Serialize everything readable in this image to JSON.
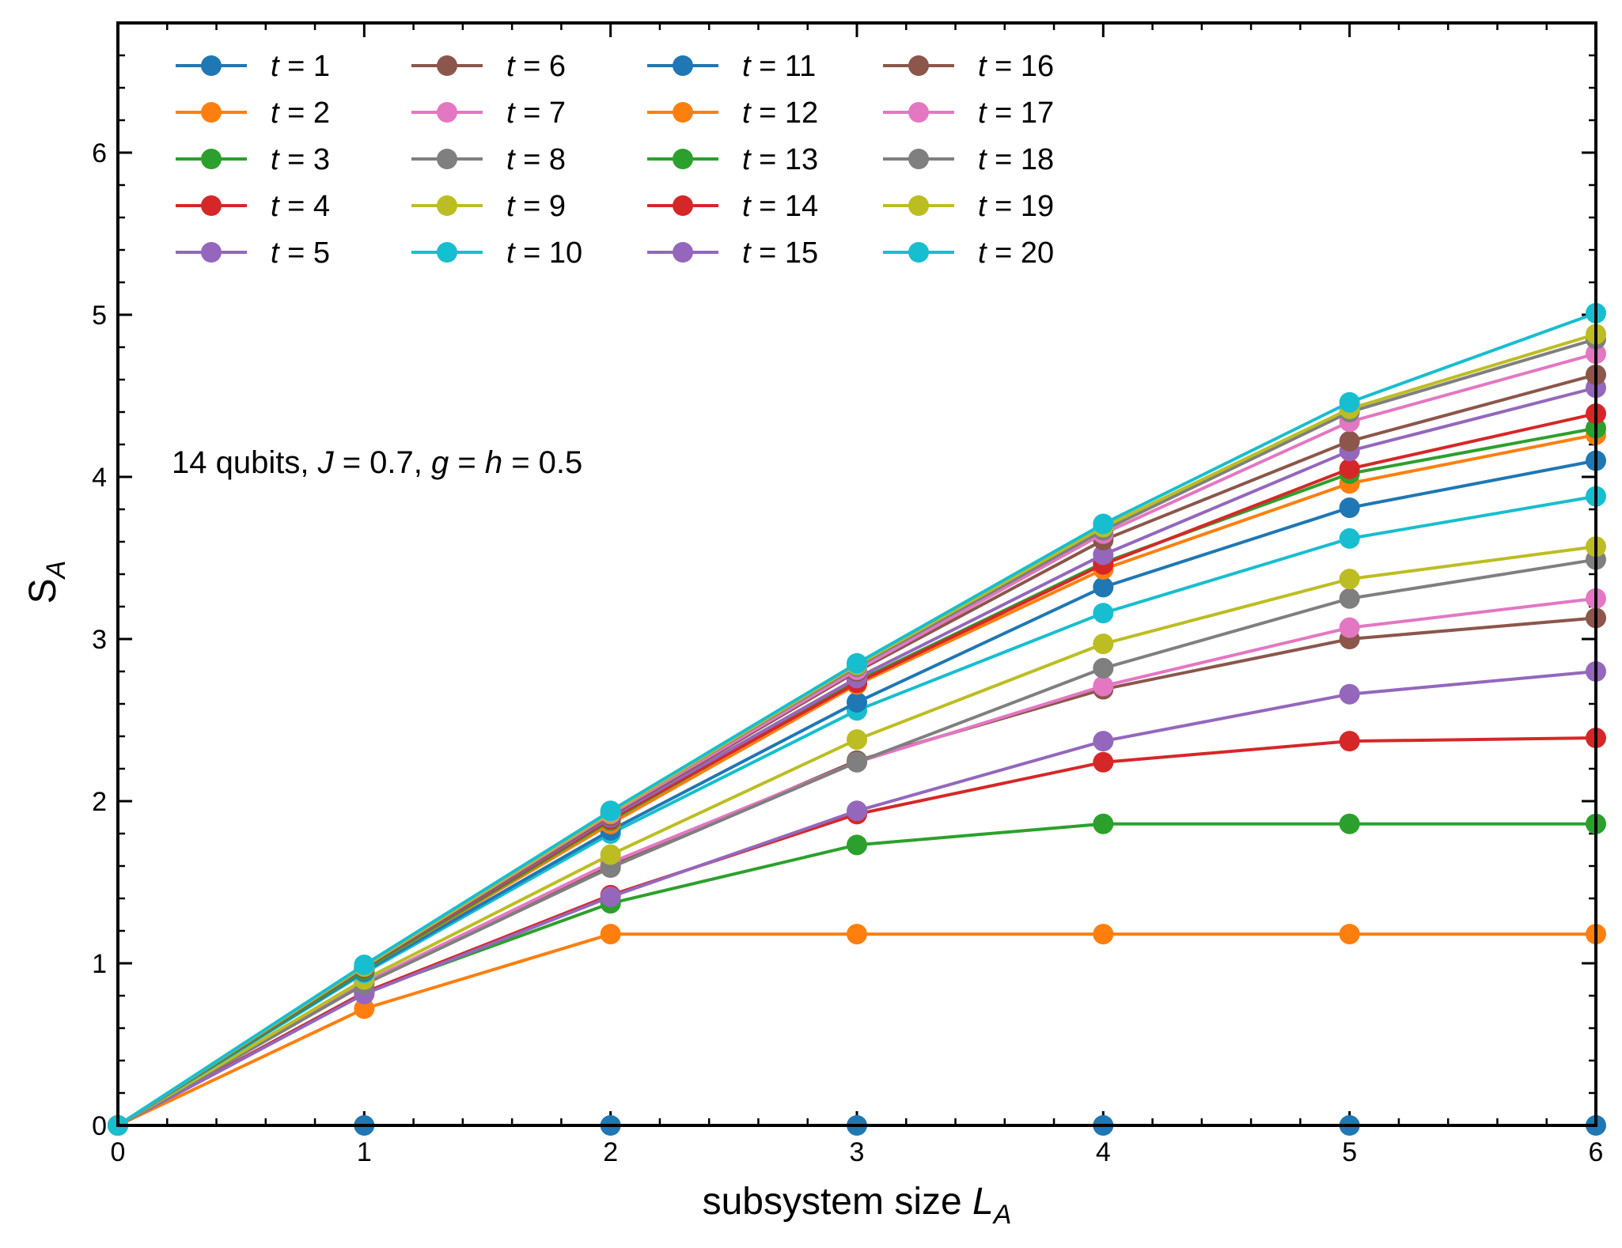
{
  "chart_data": {
    "type": "line",
    "xlabel": "subsystem size",
    "xlabel_symbol": "L",
    "xlabel_subscript": "A",
    "ylabel": "S",
    "ylabel_subscript": "A",
    "xlim": [
      0,
      6
    ],
    "ylim": [
      0,
      6.8
    ],
    "xticks": [
      "0",
      "1",
      "2",
      "3",
      "4",
      "5",
      "6"
    ],
    "yticks": [
      "0",
      "1",
      "2",
      "3",
      "4",
      "5",
      "6"
    ],
    "grid": false,
    "legend_position": "top-left",
    "legend_columns": 4,
    "annotation": {
      "prefix": "14 qubits, ",
      "j_symbol": "J",
      "j_value": " = 0.7, ",
      "g_symbol": "g",
      "eq1": " = ",
      "h_symbol": "h",
      "eq2": " = 0.5"
    },
    "x": [
      0,
      1,
      2,
      3,
      4,
      5,
      6
    ],
    "series": [
      {
        "name": "t = 1",
        "color": "#1f77b4",
        "values": [
          0,
          0,
          0,
          0,
          0,
          0,
          0
        ]
      },
      {
        "name": "t = 2",
        "color": "#ff7f0e",
        "values": [
          0,
          0.72,
          1.18,
          1.18,
          1.18,
          1.18,
          1.18
        ]
      },
      {
        "name": "t = 3",
        "color": "#2ca02c",
        "values": [
          0,
          0.82,
          1.37,
          1.73,
          1.86,
          1.86,
          1.86
        ]
      },
      {
        "name": "t = 4",
        "color": "#d62728",
        "values": [
          0,
          0.82,
          1.42,
          1.92,
          2.24,
          2.37,
          2.39
        ]
      },
      {
        "name": "t = 5",
        "color": "#9467bd",
        "values": [
          0,
          0.81,
          1.41,
          1.94,
          2.37,
          2.66,
          2.8
        ]
      },
      {
        "name": "t = 6",
        "color": "#8c564b",
        "values": [
          0,
          0.88,
          1.6,
          2.25,
          2.69,
          3.0,
          3.13
        ]
      },
      {
        "name": "t = 7",
        "color": "#e377c2",
        "values": [
          0,
          0.88,
          1.62,
          2.24,
          2.71,
          3.07,
          3.25
        ]
      },
      {
        "name": "t = 8",
        "color": "#7f7f7f",
        "values": [
          0,
          0.87,
          1.59,
          2.24,
          2.82,
          3.25,
          3.49
        ]
      },
      {
        "name": "t = 9",
        "color": "#bcbd22",
        "values": [
          0,
          0.9,
          1.67,
          2.38,
          2.97,
          3.37,
          3.57
        ]
      },
      {
        "name": "t = 10",
        "color": "#17becf",
        "values": [
          0,
          0.94,
          1.8,
          2.56,
          3.16,
          3.62,
          3.88
        ]
      },
      {
        "name": "t = 11",
        "color": "#1f77b4",
        "values": [
          0,
          0.95,
          1.82,
          2.61,
          3.32,
          3.81,
          4.1
        ]
      },
      {
        "name": "t = 12",
        "color": "#ff7f0e",
        "values": [
          0,
          0.96,
          1.86,
          2.72,
          3.43,
          3.96,
          4.26
        ]
      },
      {
        "name": "t = 13",
        "color": "#2ca02c",
        "values": [
          0,
          0.96,
          1.88,
          2.74,
          3.47,
          4.02,
          4.3
        ]
      },
      {
        "name": "t = 14",
        "color": "#d62728",
        "values": [
          0,
          0.97,
          1.89,
          2.73,
          3.46,
          4.05,
          4.39
        ]
      },
      {
        "name": "t = 15",
        "color": "#9467bd",
        "values": [
          0,
          0.97,
          1.9,
          2.76,
          3.52,
          4.16,
          4.55
        ]
      },
      {
        "name": "t = 16",
        "color": "#8c564b",
        "values": [
          0,
          0.97,
          1.91,
          2.8,
          3.61,
          4.22,
          4.63
        ]
      },
      {
        "name": "t = 17",
        "color": "#e377c2",
        "values": [
          0,
          0.98,
          1.92,
          2.81,
          3.65,
          4.34,
          4.76
        ]
      },
      {
        "name": "t = 18",
        "color": "#7f7f7f",
        "values": [
          0,
          0.98,
          1.93,
          2.83,
          3.67,
          4.4,
          4.85
        ]
      },
      {
        "name": "t = 19",
        "color": "#bcbd22",
        "values": [
          0,
          0.98,
          1.93,
          2.84,
          3.69,
          4.42,
          4.88
        ]
      },
      {
        "name": "t = 20",
        "color": "#17becf",
        "values": [
          0,
          0.99,
          1.94,
          2.85,
          3.71,
          4.46,
          5.01
        ]
      }
    ]
  }
}
